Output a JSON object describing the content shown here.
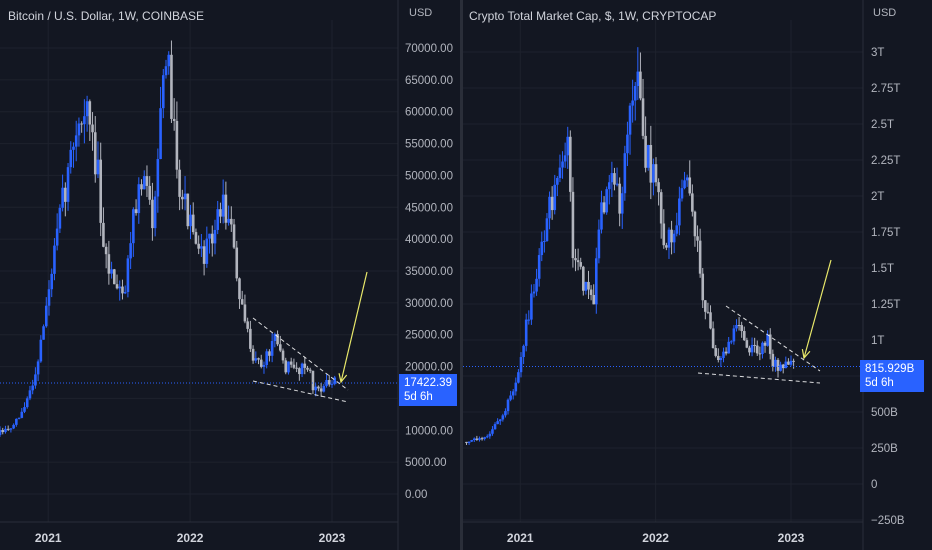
{
  "colors": {
    "background": "#131722",
    "candle_up": "#2962ff",
    "candle_down": "#b2b5be",
    "grid": "#1e222d",
    "annotation": "#e8e86a",
    "pattern": "#ffffff",
    "price_label": "#2962ff"
  },
  "left": {
    "title": "Bitcoin / U.S. Dollar, 1W, COINBASE",
    "currency": "USD",
    "price": "17422.39",
    "countdown": "5d 6h"
  },
  "right": {
    "title": "Crypto Total Market Cap, $, 1W, CRYPTOCAP",
    "currency": "USD",
    "price": "815.929B",
    "countdown": "5d 6h"
  },
  "chart_data": [
    {
      "type": "candlestick",
      "title": "Bitcoin / U.S. Dollar, 1W, COINBASE",
      "x_ticks": [
        "2021",
        "2022",
        "2023"
      ],
      "y_ticks": [
        0,
        5000,
        10000,
        15000,
        20000,
        25000,
        30000,
        35000,
        40000,
        45000,
        50000,
        55000,
        60000,
        65000,
        70000
      ],
      "y_tick_labels": [
        "0.00",
        "5000.00",
        "10000.00",
        "",
        "20000.00",
        "25000.00",
        "30000.00",
        "35000.00",
        "40000.00",
        "45000.00",
        "50000.00",
        "55000.00",
        "60000.00",
        "65000.00",
        "70000.00"
      ],
      "ylim": [
        -2000,
        72000
      ],
      "last_price": 17422.39,
      "close_path": [
        [
          "2020-10-05",
          10500
        ],
        [
          "2020-11-02",
          13500
        ],
        [
          "2020-11-30",
          19000
        ],
        [
          "2020-12-28",
          29000
        ],
        [
          "2021-01-11",
          35000
        ],
        [
          "2021-02-08",
          46000
        ],
        [
          "2021-02-22",
          50000
        ],
        [
          "2021-03-15",
          58000
        ],
        [
          "2021-04-12",
          60000
        ],
        [
          "2021-05-10",
          50000
        ],
        [
          "2021-05-24",
          37000
        ],
        [
          "2021-06-21",
          34000
        ],
        [
          "2021-07-19",
          32000
        ],
        [
          "2021-08-09",
          45000
        ],
        [
          "2021-09-06",
          49000
        ],
        [
          "2021-09-27",
          43000
        ],
        [
          "2021-10-18",
          61000
        ],
        [
          "2021-11-08",
          66000
        ],
        [
          "2021-12-06",
          49000
        ],
        [
          "2022-01-03",
          42000
        ],
        [
          "2022-01-24",
          37000
        ],
        [
          "2022-02-21",
          39000
        ],
        [
          "2022-03-28",
          46000
        ],
        [
          "2022-04-25",
          39000
        ],
        [
          "2022-05-09",
          30000
        ],
        [
          "2022-06-13",
          22000
        ],
        [
          "2022-07-04",
          20000
        ],
        [
          "2022-08-08",
          24000
        ],
        [
          "2022-09-05",
          20000
        ],
        [
          "2022-10-03",
          19500
        ],
        [
          "2022-10-31",
          20500
        ],
        [
          "2022-11-14",
          16500
        ],
        [
          "2022-12-12",
          17000
        ],
        [
          "2023-01-09",
          17422
        ]
      ],
      "annotations": [
        "descending-wedge",
        "up-arrow"
      ]
    },
    {
      "type": "candlestick",
      "title": "Crypto Total Market Cap, $, 1W, CRYPTOCAP",
      "x_ticks": [
        "2021",
        "2022",
        "2023"
      ],
      "y_ticks": [
        -250,
        0,
        250,
        500,
        750,
        1000,
        1250,
        1500,
        1750,
        2000,
        2250,
        2500,
        2750,
        3000
      ],
      "y_tick_labels": [
        "−250B",
        "0",
        "250B",
        "500B",
        "",
        "1T",
        "1.25T",
        "1.5T",
        "1.75T",
        "2T",
        "2.25T",
        "2.5T",
        "2.75T",
        "3T"
      ],
      "y_units": "billions USD",
      "ylim": [
        -280,
        3090
      ],
      "last_price": 815.929,
      "close_path": [
        [
          "2020-10-05",
          340
        ],
        [
          "2020-11-02",
          420
        ],
        [
          "2020-11-30",
          560
        ],
        [
          "2020-12-28",
          780
        ],
        [
          "2021-01-11",
          1000
        ],
        [
          "2021-02-08",
          1400
        ],
        [
          "2021-02-22",
          1600
        ],
        [
          "2021-03-15",
          1800
        ],
        [
          "2021-04-12",
          2200
        ],
        [
          "2021-05-10",
          2400
        ],
        [
          "2021-05-24",
          1600
        ],
        [
          "2021-06-21",
          1400
        ],
        [
          "2021-07-19",
          1300
        ],
        [
          "2021-08-09",
          1900
        ],
        [
          "2021-09-06",
          2200
        ],
        [
          "2021-09-27",
          1900
        ],
        [
          "2021-10-18",
          2500
        ],
        [
          "2021-11-08",
          2900
        ],
        [
          "2021-12-06",
          2300
        ],
        [
          "2022-01-03",
          2100
        ],
        [
          "2022-01-24",
          1700
        ],
        [
          "2022-02-21",
          1750
        ],
        [
          "2022-03-28",
          2100
        ],
        [
          "2022-04-25",
          1700
        ],
        [
          "2022-05-09",
          1300
        ],
        [
          "2022-06-13",
          900
        ],
        [
          "2022-07-04",
          880
        ],
        [
          "2022-08-08",
          1120
        ],
        [
          "2022-09-05",
          950
        ],
        [
          "2022-10-03",
          930
        ],
        [
          "2022-10-31",
          1000
        ],
        [
          "2022-11-14",
          830
        ],
        [
          "2022-12-12",
          820
        ],
        [
          "2023-01-09",
          816
        ]
      ],
      "annotations": [
        "descending-wedge",
        "up-arrow"
      ]
    }
  ]
}
